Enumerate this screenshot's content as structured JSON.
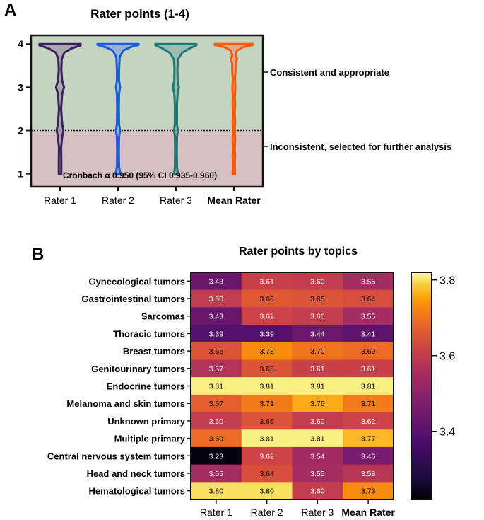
{
  "chart_data": [
    {
      "panel_letter": "A",
      "type": "violin",
      "title": "Rater points (1-4)",
      "categories": [
        "Rater 1",
        "Rater 2",
        "Rater 3",
        "Mean Rater"
      ],
      "y_ticks": [
        "1",
        "2",
        "3",
        "4"
      ],
      "ylim": [
        0.7,
        4.2
      ],
      "threshold": 2,
      "zones": [
        {
          "label": "Consistent and appropriate",
          "from": 2,
          "to": 4.2,
          "color": "#c4d4c0"
        },
        {
          "label": "Inconsistent, selected for further analysis",
          "from": 0.7,
          "to": 2,
          "color": "#d6c0c3"
        }
      ],
      "annotation": "Cronbach α 0.950 (95% CI 0.935-0.960)",
      "series": [
        {
          "name": "Rater 1",
          "color": "#3b1f5e",
          "fill": "#a09aa8",
          "shape": [
            [
              1.0,
              0.06
            ],
            [
              1.3,
              0.06
            ],
            [
              1.6,
              0.05
            ],
            [
              1.85,
              0.1
            ],
            [
              2.0,
              0.16
            ],
            [
              2.15,
              0.1
            ],
            [
              2.5,
              0.05
            ],
            [
              2.85,
              0.1
            ],
            [
              3.0,
              0.19
            ],
            [
              3.15,
              0.1
            ],
            [
              3.4,
              0.06
            ],
            [
              3.65,
              0.08
            ],
            [
              3.8,
              0.2
            ],
            [
              3.9,
              0.55
            ],
            [
              3.97,
              0.97
            ],
            [
              4.0,
              0.97
            ]
          ]
        },
        {
          "name": "Rater 2",
          "color": "#1f5fd6",
          "fill": "#8fa7d6",
          "shape": [
            [
              1.0,
              0.12
            ],
            [
              1.15,
              0.05
            ],
            [
              1.5,
              0.04
            ],
            [
              1.85,
              0.05
            ],
            [
              2.0,
              0.1
            ],
            [
              2.15,
              0.05
            ],
            [
              2.5,
              0.04
            ],
            [
              2.85,
              0.05
            ],
            [
              3.0,
              0.1
            ],
            [
              3.15,
              0.05
            ],
            [
              3.4,
              0.05
            ],
            [
              3.7,
              0.08
            ],
            [
              3.85,
              0.25
            ],
            [
              3.93,
              0.6
            ],
            [
              3.98,
              0.97
            ],
            [
              4.0,
              0.97
            ]
          ]
        },
        {
          "name": "Rater 3",
          "color": "#1e7a74",
          "fill": "#93b1ab",
          "shape": [
            [
              1.0,
              0.09
            ],
            [
              1.15,
              0.05
            ],
            [
              1.5,
              0.04
            ],
            [
              1.85,
              0.05
            ],
            [
              2.0,
              0.09
            ],
            [
              2.15,
              0.05
            ],
            [
              2.6,
              0.05
            ],
            [
              2.85,
              0.08
            ],
            [
              3.0,
              0.14
            ],
            [
              3.15,
              0.08
            ],
            [
              3.45,
              0.07
            ],
            [
              3.65,
              0.1
            ],
            [
              3.8,
              0.3
            ],
            [
              3.9,
              0.65
            ],
            [
              3.97,
              0.97
            ],
            [
              4.0,
              0.97
            ]
          ]
        },
        {
          "name": "Mean Rater",
          "color": "#f25c10",
          "fill": "#e8a07a",
          "shape": [
            [
              1.0,
              0.06
            ],
            [
              1.2,
              0.04
            ],
            [
              1.4,
              0.06
            ],
            [
              1.55,
              0.04
            ],
            [
              1.8,
              0.06
            ],
            [
              2.0,
              0.04
            ],
            [
              2.2,
              0.06
            ],
            [
              2.4,
              0.04
            ],
            [
              2.6,
              0.06
            ],
            [
              2.8,
              0.05
            ],
            [
              3.0,
              0.07
            ],
            [
              3.2,
              0.05
            ],
            [
              3.4,
              0.08
            ],
            [
              3.55,
              0.08
            ],
            [
              3.65,
              0.15
            ],
            [
              3.75,
              0.08
            ],
            [
              3.85,
              0.15
            ],
            [
              3.93,
              0.45
            ],
            [
              3.98,
              0.9
            ],
            [
              4.0,
              0.9
            ]
          ]
        }
      ]
    },
    {
      "panel_letter": "B",
      "type": "heatmap",
      "title": "Rater points by topics",
      "columns": [
        "Rater 1",
        "Rater 2",
        "Rater 3",
        "Mean Rater"
      ],
      "rows": [
        "Gynecological tumors",
        "Gastrointestinal tumors",
        "Sarcomas",
        "Thoracic tumors",
        "Breast tumors",
        "Genitourinary tumors",
        "Endocrine tumors",
        "Melanoma and skin tumors",
        "Unknown primary",
        "Multiple primary",
        "Central nervous system tumors",
        "Head and neck tumors",
        "Hematological tumors"
      ],
      "values": [
        [
          "3.43",
          "3.61",
          "3.60",
          "3.55"
        ],
        [
          "3.60",
          "3.66",
          "3.65",
          "3.64"
        ],
        [
          "3.43",
          "3.62",
          "3.60",
          "3.55"
        ],
        [
          "3.39",
          "3.39",
          "3.44",
          "3.41"
        ],
        [
          "3.65",
          "3.73",
          "3.70",
          "3.69"
        ],
        [
          "3.57",
          "3.65",
          "3.61",
          "3.61"
        ],
        [
          "3.81",
          "3.81",
          "3.81",
          "3.81"
        ],
        [
          "3.67",
          "3.71",
          "3.76",
          "3.71"
        ],
        [
          "3.60",
          "3.65",
          "3.60",
          "3.62"
        ],
        [
          "3.69",
          "3.81",
          "3.81",
          "3.77"
        ],
        [
          "3.23",
          "3.62",
          "3.54",
          "3.46"
        ],
        [
          "3.55",
          "3.64",
          "3.55",
          "3.58"
        ],
        [
          "3.80",
          "3.80",
          "3.60",
          "3.73"
        ]
      ],
      "colorbar": {
        "min": 3.22,
        "max": 3.82,
        "ticks": [
          "3.4",
          "3.6",
          "3.8"
        ]
      }
    }
  ]
}
